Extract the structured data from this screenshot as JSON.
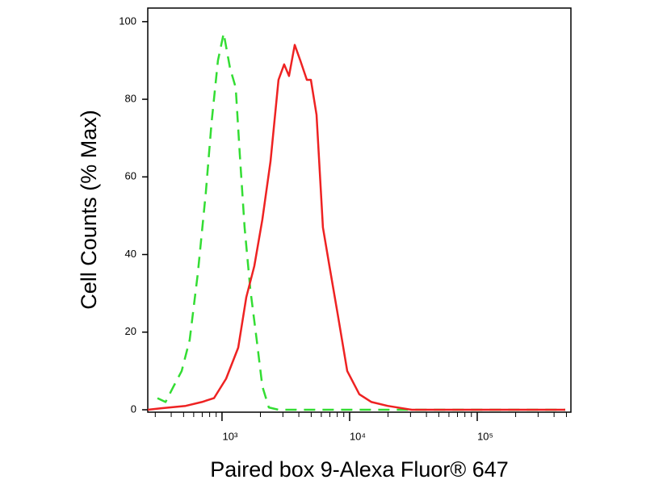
{
  "chart_data": {
    "type": "line",
    "x_label": "Paired box 9-Alexa Fluor® 647",
    "y_label": "Cell Counts (% Max)",
    "xscale": "log",
    "xlim": [
      262,
      542000
    ],
    "ylim": [
      0,
      103.5
    ],
    "xticks": [
      {
        "value": 1000,
        "label": "10³"
      },
      {
        "value": 10000,
        "label": "10⁴"
      },
      {
        "value": 100000,
        "label": "10⁵"
      }
    ],
    "xminorticks": [
      300,
      400,
      500,
      600,
      700,
      800,
      900,
      2000,
      3000,
      4000,
      5000,
      6000,
      7000,
      8000,
      9000,
      20000,
      30000,
      40000,
      50000,
      60000,
      70000,
      80000,
      90000,
      200000,
      300000,
      400000,
      500000
    ],
    "yticks": [
      0,
      20,
      40,
      60,
      80,
      100
    ],
    "series": [
      {
        "color": "#33dd33",
        "dashed": true,
        "x": [
          312,
          361,
          417,
          483,
          558,
          646,
          747,
          828,
          929,
          1030,
          1157,
          1281,
          1378,
          1504,
          1666,
          1871,
          2072,
          2328,
          2773,
          26550,
          489800
        ],
        "values": [
          3,
          2,
          6,
          10,
          18,
          35,
          56,
          74,
          90,
          97,
          88,
          83,
          66,
          47,
          31,
          18,
          6,
          0.6,
          0,
          0,
          0
        ]
      },
      {
        "color": "#ee2222",
        "dashed": false,
        "x": [
          262,
          335,
          519,
          695,
          865,
          1076,
          1339,
          1549,
          1791,
          2072,
          2399,
          2773,
          3070,
          3350,
          3715,
          4110,
          4620,
          4970,
          5505,
          6180,
          6950,
          8035,
          9575,
          11910,
          14830,
          19830,
          30690,
          489800
        ],
        "values": [
          0,
          0.4,
          1,
          2,
          3,
          8,
          16,
          29,
          37,
          49,
          64,
          85,
          89,
          86,
          94,
          90,
          85,
          85,
          76,
          47,
          37,
          25,
          10,
          4,
          2,
          1,
          0,
          0
        ]
      }
    ]
  }
}
